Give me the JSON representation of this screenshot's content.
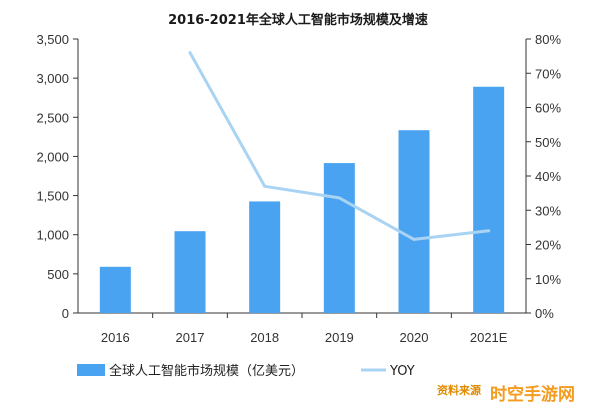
{
  "chart_data": {
    "type": "bar",
    "title": "2016-2021年全球人工智能市场规模及增速",
    "categories": [
      "2016",
      "2017",
      "2018",
      "2019",
      "2020",
      "2021E"
    ],
    "series": [
      {
        "name": "全球人工智能市场规模（亿美元）",
        "type": "bar",
        "axis": "left",
        "color": "#4aa3f0",
        "values": [
          590,
          1045,
          1425,
          1915,
          2335,
          2890
        ]
      },
      {
        "name": "YOY",
        "type": "line",
        "axis": "right",
        "color": "#a9d3f3",
        "values": [
          null,
          0.76,
          0.37,
          0.336,
          0.215,
          0.24
        ]
      }
    ],
    "y_left": {
      "min": 0,
      "max": 3500,
      "ticks": [
        "0",
        "500",
        "1,000",
        "1,500",
        "2,000",
        "2,500",
        "3,000",
        "3,500"
      ]
    },
    "y_right": {
      "min": 0,
      "max": 0.8,
      "ticks": [
        "0%",
        "10%",
        "20%",
        "30%",
        "40%",
        "50%",
        "60%",
        "70%",
        "80%"
      ]
    },
    "grid": false,
    "legend_position": "bottom-left"
  },
  "watermark": {
    "source_text": "资料来源",
    "brand_text": "时空手游网"
  }
}
